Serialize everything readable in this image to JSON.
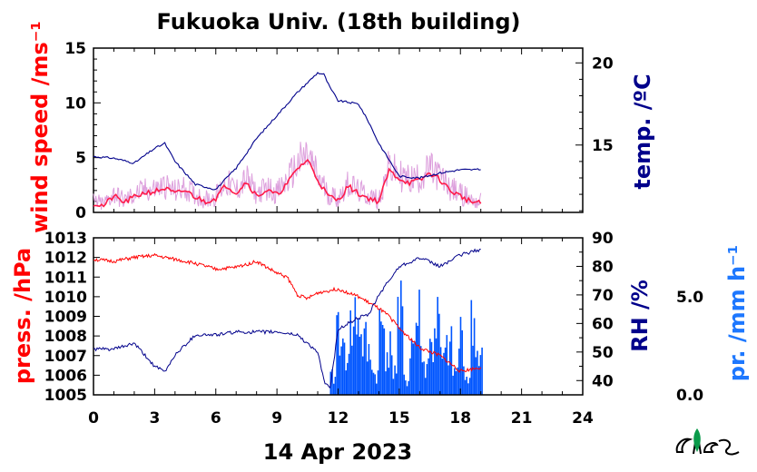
{
  "title": "Fukuoka Univ. (18th building)",
  "date_label": "14 Apr 2023",
  "colors": {
    "wind": "#ff1a4a",
    "wind_raw": "#dda0dd",
    "temp": "#00008b",
    "press": "#ff0000",
    "rh": "#00008b",
    "precip": "#0055ff",
    "logo": "#0a9a4a"
  },
  "chart_data": [
    {
      "type": "line",
      "panel": "top",
      "ylabel": "wind speed /ms⁻¹",
      "y2label": "temp. /ºC",
      "xlim": [
        0,
        24
      ],
      "ylim": [
        0,
        15
      ],
      "y2lim": [
        10.9,
        20.9
      ],
      "yticks": [
        "0",
        "5",
        "10",
        "15"
      ],
      "y2ticks": [
        "15",
        "20"
      ],
      "series": [
        {
          "axis": "left",
          "x": [
            0,
            0.5,
            1,
            1.5,
            2,
            2.5,
            3,
            3.5,
            4,
            4.5,
            5,
            5.5,
            6,
            6.5,
            7,
            7.5,
            8,
            8.5,
            9,
            9.5,
            10,
            10.5,
            11,
            11.5,
            12,
            12.5,
            13,
            13.5,
            14,
            14.5,
            15,
            15.5,
            16,
            16.5,
            17,
            17.5,
            18,
            18.5,
            19
          ],
          "values": [
            0.8,
            0.6,
            1.5,
            0.9,
            1.4,
            1.8,
            1.9,
            2.2,
            1.7,
            2.0,
            1.4,
            1.0,
            1.3,
            2.5,
            1.8,
            2.8,
            1.5,
            2.0,
            1.6,
            2.6,
            4.0,
            4.8,
            3.0,
            1.5,
            1.1,
            2.4,
            1.7,
            1.3,
            1.0,
            3.8,
            3.1,
            2.7,
            2.9,
            3.6,
            3.0,
            2.0,
            1.5,
            1.0,
            0.8
          ]
        },
        {
          "axis": "right",
          "x": [
            0,
            1,
            2,
            3,
            3.5,
            4,
            5,
            6,
            7,
            8,
            9,
            10,
            10.5,
            11,
            11.3,
            11.6,
            12,
            13,
            13.5,
            14,
            14.5,
            15,
            16,
            17,
            18,
            19
          ],
          "values": [
            14.3,
            14.2,
            13.9,
            14.8,
            15.1,
            14.0,
            12.6,
            12.3,
            13.6,
            15.4,
            16.8,
            18.2,
            18.8,
            19.4,
            19.3,
            18.5,
            17.7,
            17.5,
            16.4,
            15.1,
            14.1,
            13.1,
            13.0,
            13.3,
            13.5,
            13.5
          ]
        }
      ]
    },
    {
      "type": "line",
      "panel": "bottom",
      "xlabel": "14 Apr 2023",
      "ylabel": "press. /hPa",
      "y2label": "RH /%",
      "y3label": "pr. /mm h⁻¹",
      "xlim": [
        0,
        24
      ],
      "xticks": [
        "0",
        "3",
        "6",
        "9",
        "12",
        "15",
        "18",
        "21",
        "24"
      ],
      "ylim": [
        1005,
        1013
      ],
      "y2lim": [
        35,
        90
      ],
      "y3lim": [
        0,
        8
      ],
      "yticks": [
        "1005",
        "1006",
        "1007",
        "1008",
        "1009",
        "1010",
        "1011",
        "1012",
        "1013"
      ],
      "y2ticks": [
        "40",
        "50",
        "60",
        "70",
        "80",
        "90"
      ],
      "y3ticks": [
        "0.0",
        "5.0"
      ],
      "series": [
        {
          "axis": "left",
          "x": [
            0,
            1,
            2,
            3,
            4,
            5,
            6,
            7,
            8,
            9,
            9.5,
            10,
            10.5,
            11,
            12,
            13,
            13.5,
            14,
            14.5,
            15,
            16,
            17,
            18,
            19
          ],
          "values": [
            1011.9,
            1011.8,
            1012.0,
            1012.1,
            1011.9,
            1011.7,
            1011.4,
            1011.5,
            1011.8,
            1011.2,
            1011.0,
            1010.1,
            1009.9,
            1010.2,
            1010.4,
            1010.0,
            1009.7,
            1009.4,
            1009.0,
            1008.4,
            1007.4,
            1007.0,
            1006.2,
            1006.4
          ]
        },
        {
          "axis": "right",
          "x": [
            0,
            1,
            2,
            3,
            3.5,
            4,
            5,
            6,
            7,
            8,
            9,
            10,
            10.5,
            11,
            11.3,
            11.6,
            12,
            12.5,
            13,
            13.5,
            14,
            14.5,
            15,
            16,
            17,
            18,
            19
          ],
          "values": [
            51,
            51,
            53,
            45,
            43,
            49,
            56,
            56,
            57,
            57,
            57,
            56,
            53,
            50,
            40,
            37,
            58,
            60,
            62,
            63,
            70,
            75,
            80,
            83,
            80,
            84,
            86
          ]
        },
        {
          "axis": "right2",
          "type": "bar",
          "x": [
            11.6,
            11.9,
            12.2,
            12.5,
            12.8,
            13.1,
            13.4,
            13.7,
            14.0,
            14.3,
            14.6,
            14.9,
            15.2,
            15.5,
            15.8,
            16.1,
            16.4,
            16.7,
            17.0,
            17.3,
            17.6,
            17.9,
            18.2,
            18.5,
            18.8
          ],
          "values": [
            1.2,
            5.0,
            2.8,
            4.4,
            5.5,
            3.6,
            2.8,
            1.4,
            4.8,
            3.2,
            2.0,
            5.3,
            1.0,
            3.6,
            5.3,
            2.0,
            3.2,
            5.1,
            2.4,
            3.2,
            1.6,
            4.0,
            1.2,
            4.7,
            2.8
          ]
        }
      ]
    }
  ]
}
